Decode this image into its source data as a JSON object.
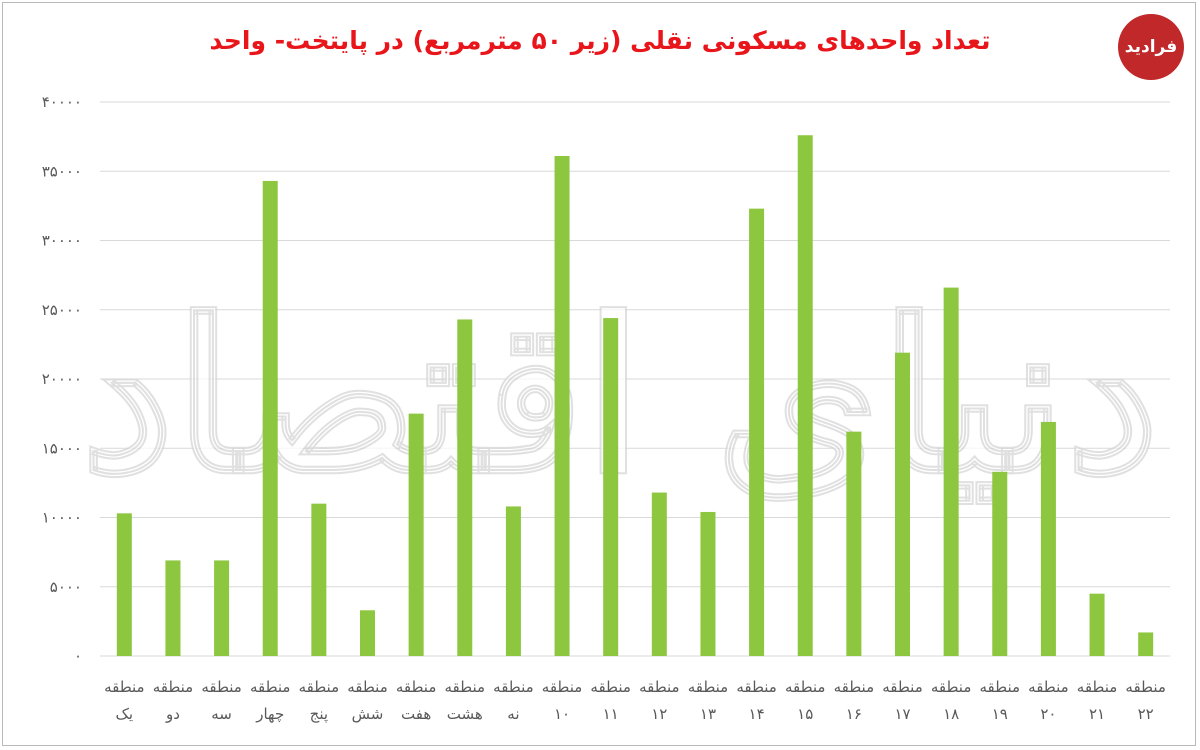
{
  "title": "تعداد واحدهای مسکونی نقلی (زیر ۵۰ مترمربع) در پایتخت- واحد",
  "logo": {
    "text": "فرادید"
  },
  "watermark": "دنیای اقتصاد",
  "colors": {
    "bar": "#8dc63f",
    "title": "#e8161b",
    "grid": "#d9d9d9",
    "axis_text": "#595959",
    "logo_bg": "#c0282a"
  },
  "chart_data": {
    "type": "bar",
    "title": "تعداد واحدهای مسکونی نقلی (زیر ۵۰ مترمربع) در پایتخت- واحد",
    "xlabel": "",
    "ylabel": "",
    "ylim": [
      0,
      40000
    ],
    "yticks": [
      0,
      5000,
      10000,
      15000,
      20000,
      25000,
      30000,
      35000,
      40000
    ],
    "ytick_labels": [
      "۰",
      "۵۰۰۰",
      "۱۰۰۰۰",
      "۱۵۰۰۰",
      "۲۰۰۰۰",
      "۲۵۰۰۰",
      "۳۰۰۰۰",
      "۳۵۰۰۰",
      "۴۰۰۰۰"
    ],
    "grid": true,
    "legend": "none",
    "categories": [
      [
        "منطقه",
        "یک"
      ],
      [
        "منطقه",
        "دو"
      ],
      [
        "منطقه",
        "سه"
      ],
      [
        "منطقه",
        "چهار"
      ],
      [
        "منطقه",
        "پنج"
      ],
      [
        "منطقه",
        "شش"
      ],
      [
        "منطقه",
        "هفت"
      ],
      [
        "منطقه",
        "هشت"
      ],
      [
        "منطقه",
        "نه"
      ],
      [
        "منطقه",
        "۱۰"
      ],
      [
        "منطقه",
        "۱۱"
      ],
      [
        "منطقه",
        "۱۲"
      ],
      [
        "منطقه",
        "۱۳"
      ],
      [
        "منطقه",
        "۱۴"
      ],
      [
        "منطقه",
        "۱۵"
      ],
      [
        "منطقه",
        "۱۶"
      ],
      [
        "منطقه",
        "۱۷"
      ],
      [
        "منطقه",
        "۱۸"
      ],
      [
        "منطقه",
        "۱۹"
      ],
      [
        "منطقه",
        "۲۰"
      ],
      [
        "منطقه",
        "۲۱"
      ],
      [
        "منطقه",
        "۲۲"
      ]
    ],
    "values": [
      10300,
      6900,
      6900,
      34300,
      11000,
      3300,
      17500,
      24300,
      10800,
      36100,
      24400,
      11800,
      10400,
      32300,
      37600,
      16200,
      21900,
      26600,
      13300,
      16900,
      4500,
      1700
    ]
  }
}
